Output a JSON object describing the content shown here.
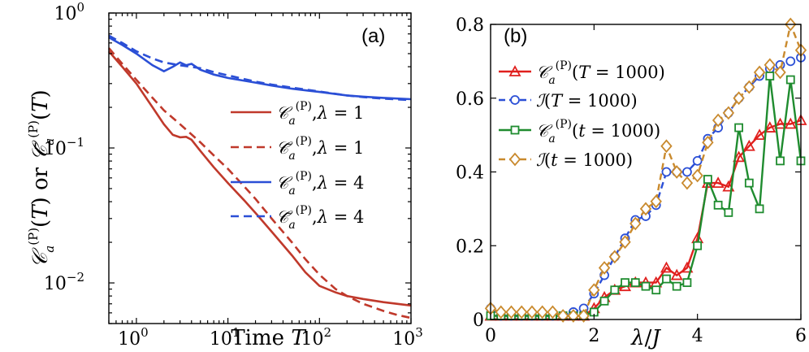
{
  "chart_data": [
    {
      "panel": "(a)",
      "type": "line",
      "xscale": "log",
      "yscale": "log",
      "xlim": [
        0.5,
        1000
      ],
      "ylim": [
        0.005,
        1
      ],
      "xlabel": "Time T",
      "ylabel": "C_a^(P)(T) or C̄_a^(P)(T)",
      "xticks": [
        {
          "v": 1,
          "label": "10",
          "exp": "0"
        },
        {
          "v": 10,
          "label": "10",
          "exp": "1"
        },
        {
          "v": 100,
          "label": "10",
          "exp": "2"
        },
        {
          "v": 1000,
          "label": "10",
          "exp": "3"
        }
      ],
      "yticks": [
        {
          "v": 0.01,
          "label": "10",
          "exp": "−2"
        },
        {
          "v": 0.1,
          "label": "10",
          "exp": "−1"
        },
        {
          "v": 1,
          "label": "10",
          "exp": "0"
        }
      ],
      "legend_position": "right",
      "series": [
        {
          "name": "C_a^(P), λ = 1",
          "color": "#c0392b",
          "dash": "solid",
          "x": [
            0.5,
            0.7,
            1,
            1.5,
            2,
            2.5,
            3,
            3.5,
            4,
            5,
            7,
            10,
            15,
            20,
            30,
            50,
            70,
            100,
            150,
            200,
            300,
            500,
            700,
            1000
          ],
          "y": [
            0.52,
            0.4,
            0.3,
            0.2,
            0.15,
            0.125,
            0.12,
            0.121,
            0.115,
            0.095,
            0.072,
            0.055,
            0.041,
            0.033,
            0.024,
            0.016,
            0.012,
            0.0095,
            0.0085,
            0.008,
            0.0076,
            0.0072,
            0.007,
            0.0068
          ]
        },
        {
          "name": "C̄_a^(P), λ = 1",
          "color": "#c0392b",
          "dash": "dash",
          "x": [
            0.5,
            0.7,
            1,
            1.5,
            2,
            3,
            5,
            7,
            10,
            15,
            20,
            30,
            50,
            70,
            100,
            150,
            200,
            300,
            500,
            700,
            1000
          ],
          "y": [
            0.55,
            0.42,
            0.32,
            0.235,
            0.19,
            0.15,
            0.11,
            0.088,
            0.07,
            0.052,
            0.042,
            0.03,
            0.02,
            0.015,
            0.0115,
            0.009,
            0.008,
            0.007,
            0.0062,
            0.0058,
            0.0055
          ]
        },
        {
          "name": "C_a^(P), λ = 4",
          "color": "#2b4fd6",
          "dash": "solid",
          "x": [
            0.5,
            0.7,
            1,
            1.5,
            2,
            2.5,
            3,
            3.5,
            4,
            5,
            7,
            10,
            20,
            30,
            50,
            100,
            200,
            300,
            500,
            1000
          ],
          "y": [
            0.66,
            0.58,
            0.5,
            0.41,
            0.37,
            0.4,
            0.43,
            0.41,
            0.42,
            0.38,
            0.35,
            0.33,
            0.305,
            0.29,
            0.275,
            0.26,
            0.245,
            0.24,
            0.235,
            0.23
          ]
        },
        {
          "name": "C̄_a^(P), λ = 4",
          "color": "#2b4fd6",
          "dash": "dash",
          "x": [
            0.5,
            0.7,
            1,
            1.5,
            2,
            3,
            5,
            7,
            10,
            20,
            30,
            50,
            100,
            200,
            300,
            500,
            1000
          ],
          "y": [
            0.68,
            0.6,
            0.52,
            0.46,
            0.43,
            0.41,
            0.39,
            0.365,
            0.345,
            0.31,
            0.295,
            0.28,
            0.262,
            0.245,
            0.238,
            0.232,
            0.226
          ]
        }
      ]
    },
    {
      "panel": "(b)",
      "type": "line",
      "xlim": [
        0,
        6
      ],
      "ylim": [
        0,
        0.8
      ],
      "xlabel": "λ/J",
      "ylabel": "",
      "xticks": [
        0,
        2,
        4,
        6
      ],
      "yticks": [
        0,
        0.2,
        0.4,
        0.6,
        0.8
      ],
      "legend_position": "top-left",
      "series": [
        {
          "name": "C_a^(P)(T = 1000)",
          "color": "#e0201e",
          "marker": "triangle",
          "dash": "solid",
          "x": [
            0,
            0.2,
            0.4,
            0.6,
            0.8,
            1.0,
            1.2,
            1.4,
            1.6,
            1.8,
            2.0,
            2.2,
            2.4,
            2.6,
            2.8,
            3.0,
            3.2,
            3.4,
            3.6,
            3.8,
            4.0,
            4.2,
            4.4,
            4.6,
            4.8,
            5.0,
            5.2,
            5.4,
            5.6,
            5.8,
            6.0
          ],
          "y": [
            0.01,
            0.01,
            0.01,
            0.01,
            0.01,
            0.01,
            0.01,
            0.01,
            0.01,
            0.01,
            0.03,
            0.06,
            0.08,
            0.09,
            0.1,
            0.1,
            0.1,
            0.14,
            0.12,
            0.14,
            0.22,
            0.37,
            0.37,
            0.36,
            0.44,
            0.47,
            0.5,
            0.52,
            0.53,
            0.53,
            0.54
          ]
        },
        {
          "name": "I(T = 1000)",
          "color": "#2b4fd6",
          "marker": "circle",
          "dash": "dash",
          "x": [
            0,
            0.2,
            0.4,
            0.6,
            0.8,
            1.0,
            1.2,
            1.4,
            1.6,
            1.8,
            2.0,
            2.2,
            2.4,
            2.6,
            2.8,
            3.0,
            3.2,
            3.4,
            3.6,
            3.8,
            4.0,
            4.2,
            4.4,
            4.6,
            4.8,
            5.0,
            5.2,
            5.4,
            5.6,
            5.8,
            6.0
          ],
          "y": [
            0.03,
            0.01,
            0.01,
            0.01,
            0.01,
            0.01,
            0.01,
            0.01,
            0.02,
            0.03,
            0.07,
            0.12,
            0.17,
            0.22,
            0.27,
            0.28,
            0.31,
            0.4,
            0.4,
            0.4,
            0.43,
            0.49,
            0.52,
            0.56,
            0.6,
            0.63,
            0.66,
            0.68,
            0.69,
            0.7,
            0.71
          ]
        },
        {
          "name": "C_a^(P)(t = 1000)",
          "color": "#1f8c2f",
          "marker": "square",
          "dash": "solid",
          "x": [
            0,
            0.2,
            0.4,
            0.6,
            0.8,
            1.0,
            1.2,
            1.4,
            1.6,
            1.8,
            2.0,
            2.2,
            2.4,
            2.6,
            2.8,
            3.0,
            3.2,
            3.4,
            3.6,
            3.8,
            4.0,
            4.2,
            4.4,
            4.6,
            4.8,
            5.0,
            5.2,
            5.4,
            5.6,
            5.8,
            6.0
          ],
          "y": [
            0.01,
            0.01,
            0.01,
            0.01,
            0.01,
            0.01,
            0.01,
            0.01,
            0.01,
            0.01,
            0.02,
            0.05,
            0.08,
            0.1,
            0.1,
            0.09,
            0.08,
            0.11,
            0.09,
            0.1,
            0.2,
            0.38,
            0.31,
            0.29,
            0.52,
            0.37,
            0.3,
            0.66,
            0.43,
            0.65,
            0.43
          ]
        },
        {
          "name": "I(t = 1000)",
          "color": "#c98a2e",
          "marker": "diamond",
          "dash": "dash",
          "x": [
            0,
            0.2,
            0.4,
            0.6,
            0.8,
            1.0,
            1.2,
            1.4,
            1.6,
            1.8,
            2.0,
            2.2,
            2.4,
            2.6,
            2.8,
            3.0,
            3.2,
            3.4,
            3.6,
            3.8,
            4.0,
            4.2,
            4.4,
            4.6,
            4.8,
            5.0,
            5.2,
            5.4,
            5.6,
            5.8,
            6.0
          ],
          "y": [
            0.03,
            0.02,
            0.02,
            0.02,
            0.02,
            0.02,
            0.02,
            0.01,
            0.01,
            0.01,
            0.08,
            0.14,
            0.17,
            0.21,
            0.26,
            0.3,
            0.32,
            0.47,
            0.4,
            0.37,
            0.39,
            0.48,
            0.54,
            0.56,
            0.6,
            0.63,
            0.67,
            0.69,
            0.67,
            0.8,
            0.73
          ]
        }
      ]
    }
  ]
}
